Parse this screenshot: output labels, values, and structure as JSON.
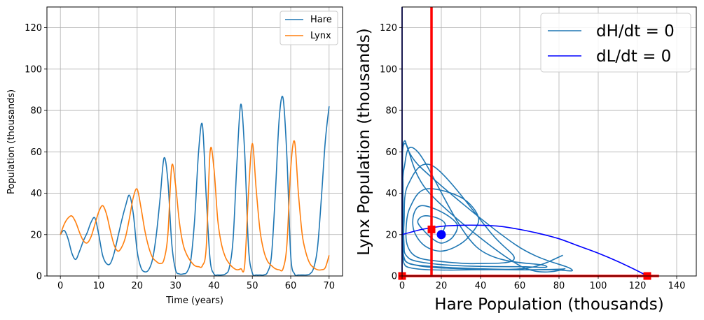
{
  "chart_data": [
    {
      "type": "line",
      "xlabel": "Time (years)",
      "ylabel": "Population (thousands)",
      "xlim": [
        -3.5,
        73.5
      ],
      "ylim": [
        0,
        130
      ],
      "xticks": [
        0,
        10,
        20,
        30,
        40,
        50,
        60,
        70
      ],
      "yticks": [
        0,
        20,
        40,
        60,
        80,
        100,
        120
      ],
      "grid": true,
      "legend_position": "top-right",
      "series": [
        {
          "name": "Hare",
          "color": "#1f77b4",
          "x": [
            0,
            1,
            2,
            3,
            4,
            5,
            6,
            7,
            8,
            9,
            10,
            11,
            12,
            13,
            14,
            15,
            16,
            17,
            18,
            19,
            20,
            21,
            22,
            23,
            24,
            25,
            26,
            27,
            28,
            29,
            30,
            31,
            32,
            33,
            34,
            35,
            36,
            37,
            38,
            39,
            40,
            41,
            42,
            43,
            44,
            45,
            46,
            47,
            48,
            49,
            50,
            51,
            52,
            53,
            54,
            55,
            56,
            57,
            58,
            59,
            60,
            61,
            62,
            63,
            64,
            65,
            66,
            67,
            68,
            69,
            70
          ],
          "y": [
            20,
            22,
            18,
            11,
            8,
            12,
            17,
            21,
            26,
            28,
            20,
            10,
            6,
            6,
            11,
            19,
            27,
            34,
            39,
            30,
            12,
            4,
            2,
            3,
            8,
            20,
            38,
            57,
            46,
            16,
            3,
            1,
            1,
            2,
            8,
            28,
            60,
            73,
            38,
            8,
            1,
            0.5,
            0.5,
            1,
            4,
            18,
            55,
            83,
            60,
            14,
            1.5,
            0.5,
            0.5,
            0.5,
            2,
            10,
            40,
            76,
            86,
            58,
            10,
            1,
            0.5,
            0.5,
            0.5,
            1,
            4,
            14,
            38,
            65,
            82
          ]
        },
        {
          "name": "Lynx",
          "color": "#ff7f0e",
          "x": [
            0,
            1,
            2,
            3,
            4,
            5,
            6,
            7,
            8,
            9,
            10,
            11,
            12,
            13,
            14,
            15,
            16,
            17,
            18,
            19,
            20,
            21,
            22,
            23,
            24,
            25,
            26,
            27,
            28,
            29,
            30,
            31,
            32,
            33,
            34,
            35,
            36,
            37,
            38,
            39,
            40,
            41,
            42,
            43,
            44,
            45,
            46,
            47,
            48,
            49,
            50,
            51,
            52,
            53,
            54,
            55,
            56,
            57,
            58,
            59,
            60,
            61,
            62,
            63,
            64,
            65,
            66,
            67,
            68,
            69,
            70
          ],
          "y": [
            20,
            25,
            28,
            29,
            26,
            21,
            17,
            16,
            19,
            25,
            31,
            34,
            30,
            22,
            15,
            12,
            14,
            19,
            28,
            38,
            42,
            33,
            22,
            14,
            9,
            7,
            6,
            8,
            20,
            53,
            44,
            26,
            15,
            10,
            7,
            5,
            4.5,
            5,
            14,
            60,
            52,
            27,
            15,
            9,
            6,
            4,
            3,
            3.5,
            5,
            40,
            64,
            42,
            22,
            12,
            7,
            5,
            3.5,
            3,
            3.5,
            15,
            52,
            65,
            40,
            20,
            11,
            6,
            4,
            3,
            3,
            4,
            10
          ]
        }
      ]
    },
    {
      "type": "line",
      "xlabel": "Hare Population (thousands)",
      "ylabel": "Lynx Population (thousands)",
      "xlim": [
        0,
        150
      ],
      "ylim": [
        0,
        130
      ],
      "xticks": [
        0,
        20,
        40,
        60,
        80,
        100,
        120,
        140
      ],
      "yticks": [
        0,
        20,
        40,
        60,
        80,
        100,
        120
      ],
      "grid": true,
      "legend_position": "top-right",
      "series": [
        {
          "name": "dH/dt = 0",
          "color": "#1f77b4",
          "role": "legend-only"
        },
        {
          "name": "dL/dt = 0",
          "color": "#0000ff",
          "x": [
            0,
            10,
            20,
            30,
            40,
            50,
            60,
            70,
            80,
            90,
            100,
            110,
            120,
            125
          ],
          "y": [
            20,
            22.5,
            24,
            24.5,
            24.5,
            24,
            22.5,
            20.5,
            18,
            14.5,
            11,
            7,
            2.5,
            0
          ]
        }
      ],
      "trajectory": {
        "color": "#1f77b4",
        "x": [
          20,
          22,
          18,
          11,
          8,
          12,
          17,
          21,
          26,
          28,
          20,
          10,
          6,
          6,
          11,
          19,
          27,
          34,
          39,
          30,
          12,
          4,
          2,
          3,
          8,
          20,
          38,
          57,
          46,
          16,
          3,
          1,
          1,
          2,
          8,
          28,
          60,
          73,
          38,
          8,
          1,
          0.5,
          0.5,
          1,
          4,
          18,
          55,
          83,
          60,
          14,
          1.5,
          0.5,
          0.5,
          0.5,
          2,
          10,
          40,
          76,
          86,
          58,
          10,
          1,
          0.5,
          0.5,
          0.5,
          1,
          4,
          14,
          38,
          65,
          82
        ],
        "y": [
          20,
          25,
          28,
          29,
          26,
          21,
          17,
          16,
          19,
          25,
          31,
          34,
          30,
          22,
          15,
          12,
          14,
          19,
          28,
          38,
          42,
          33,
          22,
          14,
          9,
          7,
          6,
          8,
          20,
          53,
          44,
          26,
          15,
          10,
          7,
          5,
          4.5,
          5,
          14,
          60,
          52,
          27,
          15,
          9,
          6,
          4,
          3,
          3.5,
          5,
          40,
          64,
          42,
          22,
          12,
          7,
          5,
          3.5,
          3,
          3.5,
          15,
          52,
          65,
          40,
          20,
          11,
          6,
          4,
          3,
          3,
          4,
          10
        ]
      },
      "nullclines": [
        {
          "color": "#ff0000",
          "orientation": "vertical",
          "x": 15,
          "y_range": [
            0,
            130
          ]
        },
        {
          "color": "#ff0000",
          "orientation": "horizontal",
          "y": 0,
          "x_range": [
            0,
            131
          ]
        },
        {
          "color": "#00008b",
          "orientation": "vertical",
          "x": 0,
          "y_range": [
            0,
            130
          ]
        }
      ],
      "equilibria": [
        {
          "x": 0,
          "y": 0,
          "color": "#ff0000",
          "marker": "square"
        },
        {
          "x": 15,
          "y": 22.5,
          "color": "#ff0000",
          "marker": "square"
        },
        {
          "x": 125,
          "y": 0,
          "color": "#ff0000",
          "marker": "square"
        }
      ],
      "initial_point": {
        "x": 20,
        "y": 20,
        "color": "#0000ff",
        "marker": "circle"
      }
    }
  ]
}
